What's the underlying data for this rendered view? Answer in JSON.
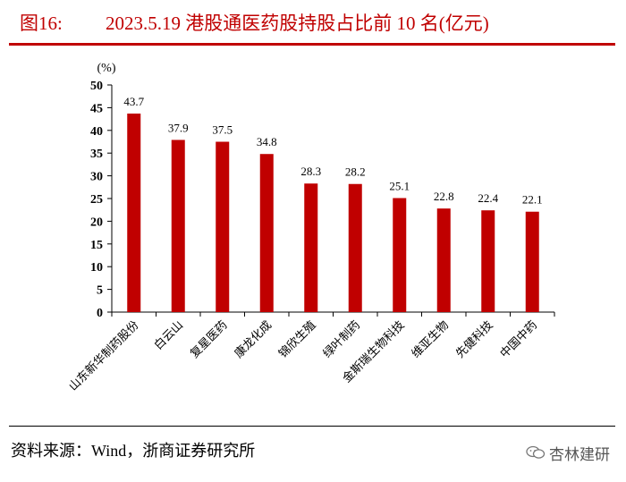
{
  "header": {
    "figure_label": "图16:",
    "title_text": "2023.5.19 港股通医药股持股占比前 10 名(亿元)"
  },
  "chart_data": {
    "type": "bar",
    "title": "2023.5.19 港股通医药股持股占比前 10 名(亿元)",
    "ylabel": "(%)",
    "xlabel": "",
    "ylim": [
      0,
      50
    ],
    "yticks": [
      0,
      5,
      10,
      15,
      20,
      25,
      30,
      35,
      40,
      45,
      50
    ],
    "grid": false,
    "categories": [
      "山东新华制药股份",
      "白云山",
      "复星医药",
      "康龙化成",
      "锦欣生殖",
      "绿叶制药",
      "金斯瑞生物科技",
      "维亚生物",
      "先健科技",
      "中国中药"
    ],
    "values": [
      43.7,
      37.9,
      37.5,
      34.8,
      28.3,
      28.2,
      25.1,
      22.8,
      22.4,
      22.1
    ],
    "data_labels": [
      "43.7",
      "37.9",
      "37.5",
      "34.8",
      "28.3",
      "28.2",
      "25.1",
      "22.8",
      "22.4",
      "22.1"
    ],
    "bar_color": "#c00000"
  },
  "footer": {
    "source_text": "资料来源：Wind，浙商证券研究所",
    "watermark_text": "杏林建研",
    "watermark_icon": "wechat-icon"
  }
}
